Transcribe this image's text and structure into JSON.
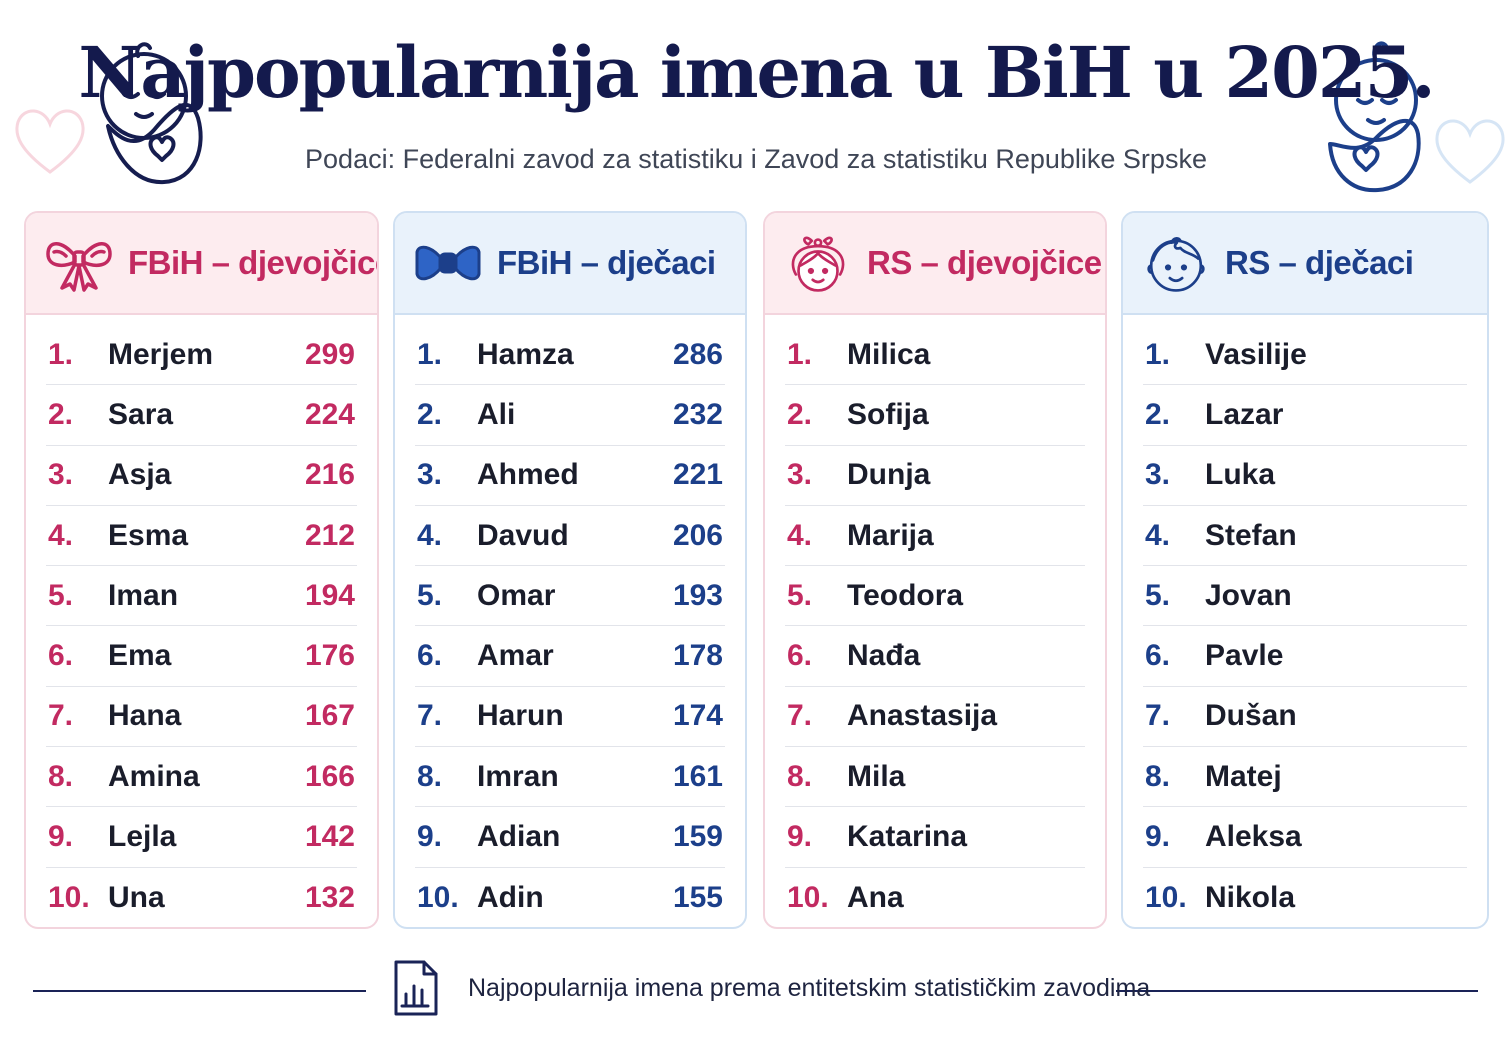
{
  "header": {
    "title": "Najpopularnija imena u BiH u 2025.",
    "subtitle": "Podaci: Federalni zavod za statistiku i Zavod za statistiku Republike Srpske"
  },
  "colors": {
    "pink": "#c22a61",
    "blue": "#1c3f8a",
    "navy": "#141a4d"
  },
  "cards": [
    {
      "title": "FBiH – djevojčice",
      "icon": "ribbon-bow-icon",
      "theme": "pink",
      "rows": [
        {
          "rank": "1.",
          "name": "Merjem",
          "count": "299"
        },
        {
          "rank": "2.",
          "name": "Sara",
          "count": "224"
        },
        {
          "rank": "3.",
          "name": "Asja",
          "count": "216"
        },
        {
          "rank": "4.",
          "name": "Esma",
          "count": "212"
        },
        {
          "rank": "5.",
          "name": "Iman",
          "count": "194"
        },
        {
          "rank": "6.",
          "name": "Ema",
          "count": "176"
        },
        {
          "rank": "7.",
          "name": "Hana",
          "count": "167"
        },
        {
          "rank": "8.",
          "name": "Amina",
          "count": "166"
        },
        {
          "rank": "9.",
          "name": "Lejla",
          "count": "142"
        },
        {
          "rank": "10.",
          "name": "Una",
          "count": "132"
        }
      ]
    },
    {
      "title": "FBiH – dječaci",
      "icon": "bow-tie-icon",
      "theme": "blue",
      "rows": [
        {
          "rank": "1.",
          "name": "Hamza",
          "count": "286"
        },
        {
          "rank": "2.",
          "name": "Ali",
          "count": "232"
        },
        {
          "rank": "3.",
          "name": "Ahmed",
          "count": "221"
        },
        {
          "rank": "4.",
          "name": "Davud",
          "count": "206"
        },
        {
          "rank": "5.",
          "name": "Omar",
          "count": "193"
        },
        {
          "rank": "6.",
          "name": "Amar",
          "count": "178"
        },
        {
          "rank": "7.",
          "name": "Harun",
          "count": "174"
        },
        {
          "rank": "8.",
          "name": "Imran",
          "count": "161"
        },
        {
          "rank": "9.",
          "name": "Adian",
          "count": "159"
        },
        {
          "rank": "10.",
          "name": "Adin",
          "count": "155"
        }
      ]
    },
    {
      "title": "RS – djevojčice",
      "icon": "girl-face-icon",
      "theme": "pink",
      "rows": [
        {
          "rank": "1.",
          "name": "Milica"
        },
        {
          "rank": "2.",
          "name": "Sofija"
        },
        {
          "rank": "3.",
          "name": "Dunja"
        },
        {
          "rank": "4.",
          "name": "Marija"
        },
        {
          "rank": "5.",
          "name": "Teodora"
        },
        {
          "rank": "6.",
          "name": "Nađa"
        },
        {
          "rank": "7.",
          "name": "Anastasija"
        },
        {
          "rank": "8.",
          "name": "Mila"
        },
        {
          "rank": "9.",
          "name": "Katarina"
        },
        {
          "rank": "10.",
          "name": "Ana"
        }
      ]
    },
    {
      "title": "RS – dječaci",
      "icon": "boy-face-icon",
      "theme": "blue",
      "rows": [
        {
          "rank": "1.",
          "name": "Vasilije"
        },
        {
          "rank": "2.",
          "name": "Lazar"
        },
        {
          "rank": "3.",
          "name": "Luka"
        },
        {
          "rank": "4.",
          "name": "Stefan"
        },
        {
          "rank": "5.",
          "name": "Jovan"
        },
        {
          "rank": "6.",
          "name": "Pavle"
        },
        {
          "rank": "7.",
          "name": "Dušan"
        },
        {
          "rank": "8.",
          "name": "Matej"
        },
        {
          "rank": "9.",
          "name": "Aleksa"
        },
        {
          "rank": "10.",
          "name": "Nikola"
        }
      ]
    }
  ],
  "footer": {
    "icon": "document-chart-icon",
    "text": "Najpopularnija imena prema entitetskim statističkim zavodima"
  }
}
